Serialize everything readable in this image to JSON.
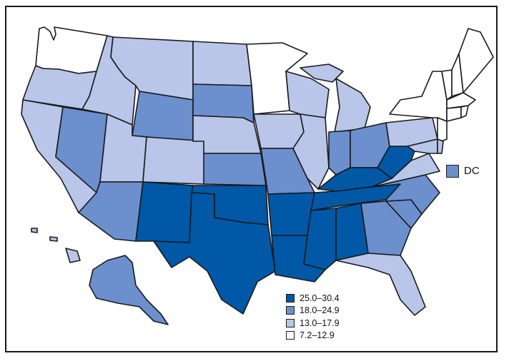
{
  "colors": {
    "class_1": "#0058a6",
    "class_2": "#6c8fce",
    "class_3": "#b9c6e9",
    "class_4": "#ffffff"
  },
  "legend": [
    {
      "label": "25.0–30.4",
      "color": "#0058a6"
    },
    {
      "label": "18.0–24.9",
      "color": "#6c8fce"
    },
    {
      "label": "13.0–17.9",
      "color": "#b9c6e9"
    },
    {
      "label": "7.2–12.9",
      "color": "#ffffff"
    }
  ],
  "dc": {
    "label": "DC",
    "class": "class_2"
  },
  "states": {
    "WA": "class_4",
    "OR": "class_3",
    "CA": "class_3",
    "ID": "class_3",
    "NV": "class_2",
    "MT": "class_3",
    "WY": "class_2",
    "UT": "class_3",
    "AZ": "class_2",
    "CO": "class_3",
    "NM": "class_1",
    "ND": "class_3",
    "SD": "class_2",
    "NE": "class_3",
    "KS": "class_2",
    "OK": "class_1",
    "TX": "class_1",
    "MN": "class_4",
    "IA": "class_3",
    "MO": "class_2",
    "AR": "class_1",
    "LA": "class_1",
    "WI": "class_3",
    "IL": "class_3",
    "MI": "class_3",
    "IN": "class_2",
    "OH": "class_2",
    "KY": "class_1",
    "TN": "class_1",
    "MS": "class_1",
    "AL": "class_1",
    "GA": "class_2",
    "FL": "class_3",
    "SC": "class_2",
    "NC": "class_2",
    "VA": "class_3",
    "WV": "class_1",
    "PA": "class_3",
    "NY": "class_4",
    "NJ": "class_4",
    "DE": "class_3",
    "MD": "class_3",
    "VT": "class_4",
    "NH": "class_4",
    "ME": "class_4",
    "MA": "class_4",
    "CT": "class_4",
    "RI": "class_4",
    "AK": "class_2",
    "HI": "class_3"
  }
}
